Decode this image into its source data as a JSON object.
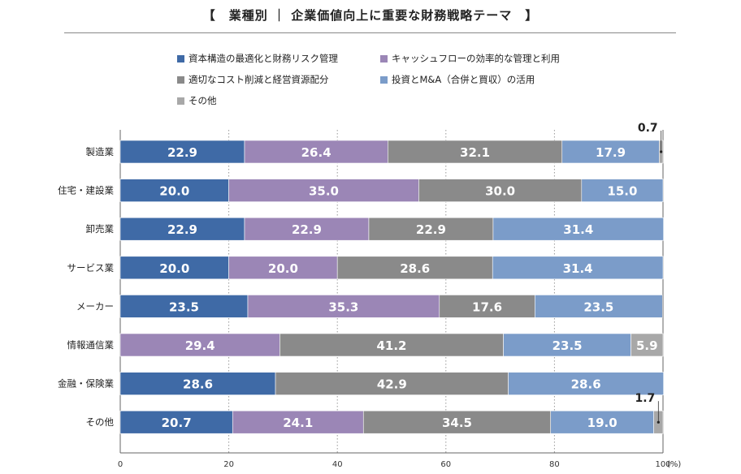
{
  "title": "【　業種別 ｜ 企業価値向上に重要な財務戦略テーマ　】",
  "chart_data": {
    "type": "bar",
    "orientation": "horizontal",
    "stacked": true,
    "categories": [
      "製造業",
      "住宅・建設業",
      "卸売業",
      "サービス業",
      "メーカー",
      "情報通信業",
      "金融・保険業",
      "その他"
    ],
    "series": [
      {
        "name": "資本構造の最適化と財務リスク管理",
        "color": "#3f6aa6",
        "values": [
          22.9,
          20.0,
          22.9,
          20.0,
          23.5,
          0,
          28.6,
          20.7
        ]
      },
      {
        "name": "キャッシュフローの効率的な管理と利用",
        "color": "#9b86b6",
        "values": [
          26.4,
          35.0,
          22.9,
          20.0,
          35.3,
          29.4,
          0,
          24.1
        ]
      },
      {
        "name": "適切なコスト削減と経営資源配分",
        "color": "#8a8a8a",
        "values": [
          32.1,
          30.0,
          22.9,
          28.6,
          17.6,
          41.2,
          42.9,
          34.5
        ]
      },
      {
        "name": "投資とM&A（合併と買収）の活用",
        "color": "#7b9cc9",
        "values": [
          17.9,
          15.0,
          31.4,
          31.4,
          23.5,
          23.5,
          28.6,
          19.0
        ]
      },
      {
        "name": "その他",
        "color": "#a8a8a8",
        "values": [
          0.7,
          0,
          0,
          0,
          0,
          5.9,
          0,
          1.7
        ]
      }
    ],
    "xlim": [
      0,
      100
    ],
    "xticks": [
      "0",
      "20",
      "40",
      "60",
      "80",
      "100"
    ],
    "xunit": "(%)",
    "grid": true,
    "legend_position": "top"
  }
}
